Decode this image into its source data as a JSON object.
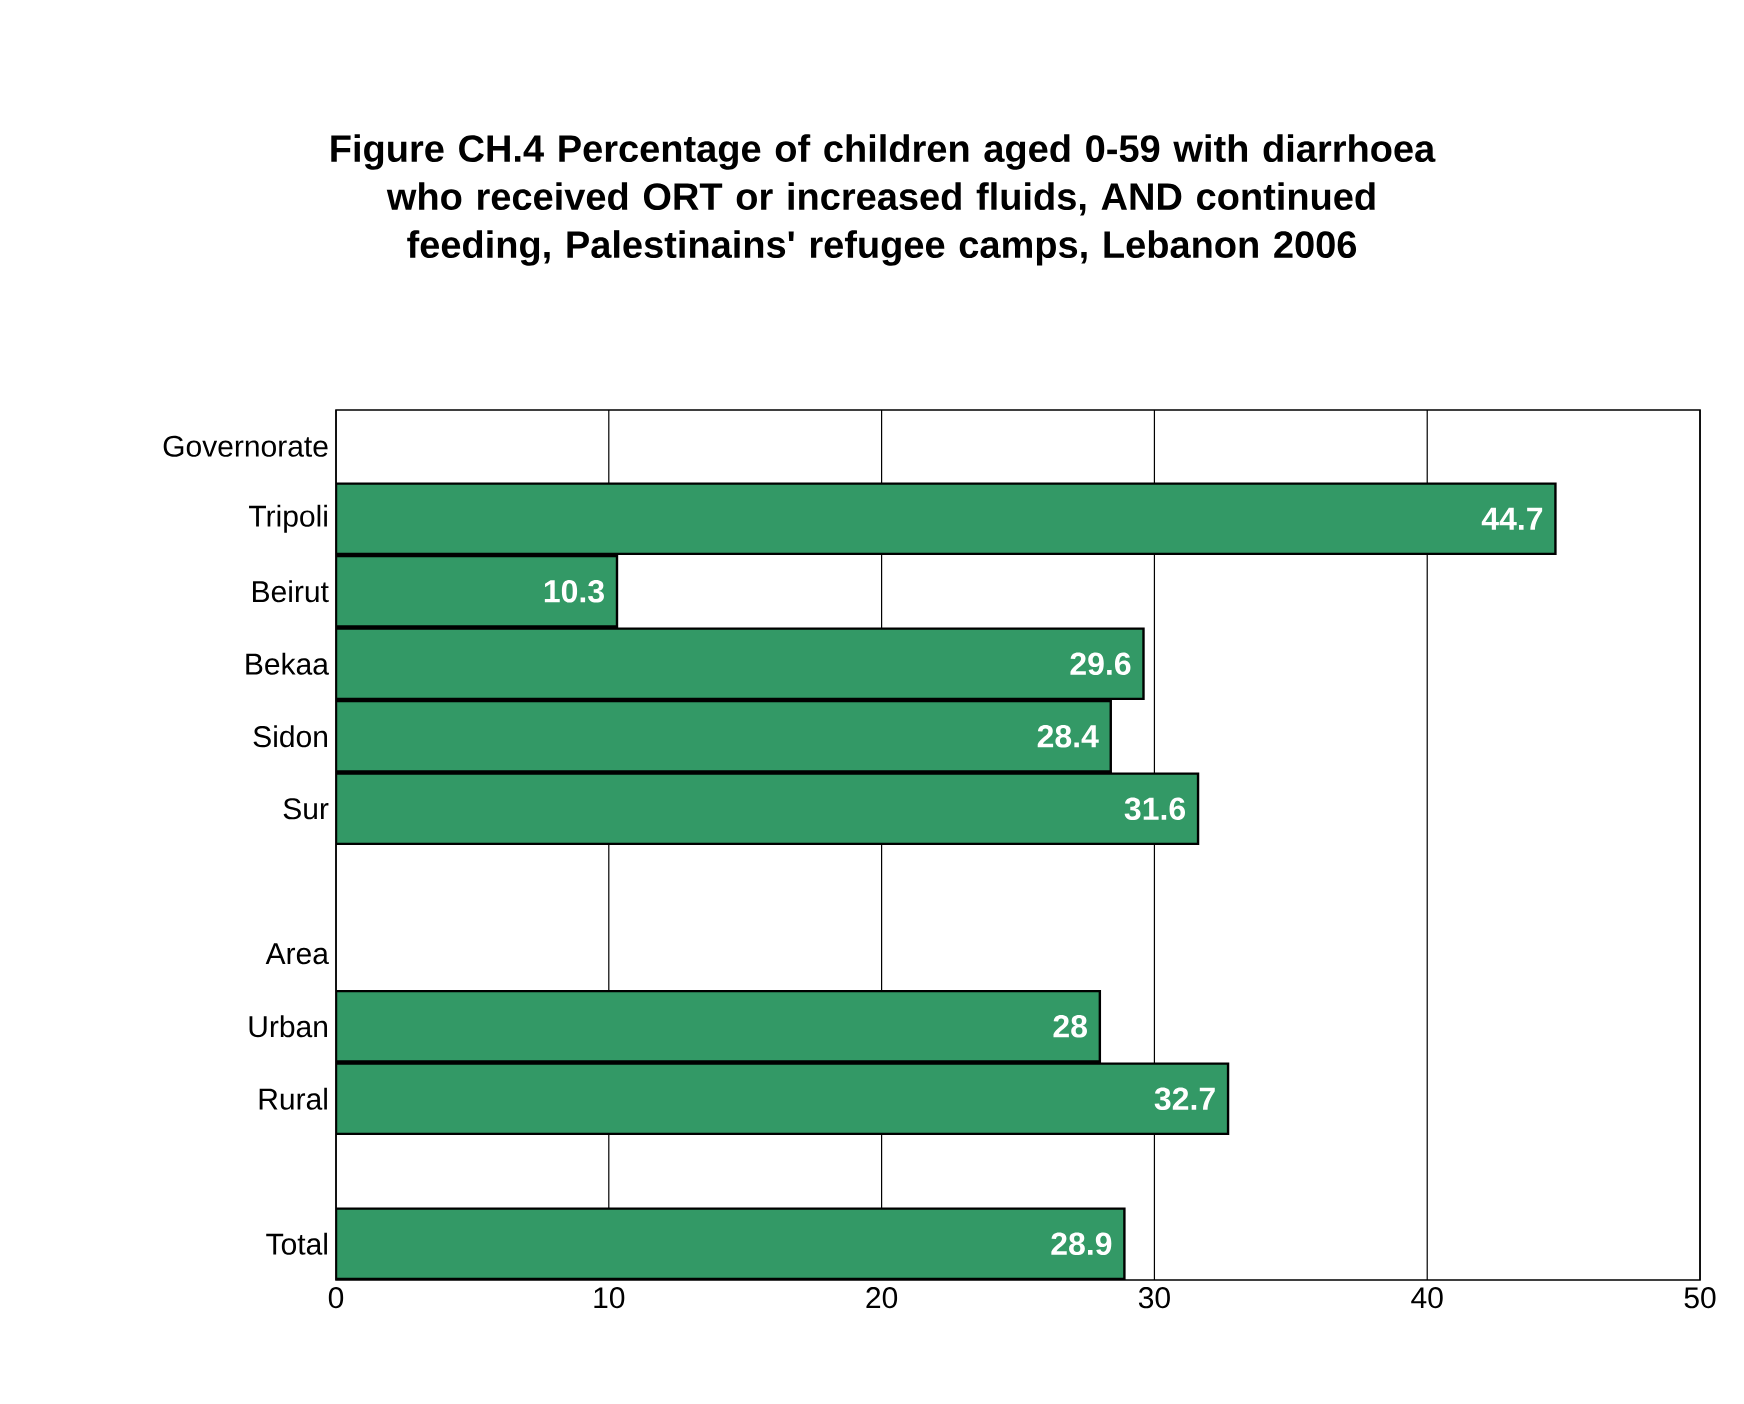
{
  "chart_data": {
    "type": "bar",
    "orientation": "horizontal",
    "title": "Figure CH.4 Percentage of children aged 0-59 with diarrhoea who received ORT or increased fluids, AND continued feeding, Palestinains' refugee camps, Lebanon 2006",
    "categories": [
      "Governorate",
      "Tripoli",
      "Beirut",
      "Bekaa",
      "Sidon",
      "Sur",
      null,
      "Area",
      "Urban",
      "Rural",
      null,
      "Total"
    ],
    "values": [
      null,
      44.7,
      10.3,
      29.6,
      28.4,
      31.6,
      null,
      null,
      28,
      32.7,
      null,
      28.9
    ],
    "color": "#339966",
    "xlim": [
      0,
      50
    ],
    "xticks": [
      0,
      10,
      20,
      30,
      40,
      50
    ],
    "grid": "x",
    "data_labels": true
  }
}
